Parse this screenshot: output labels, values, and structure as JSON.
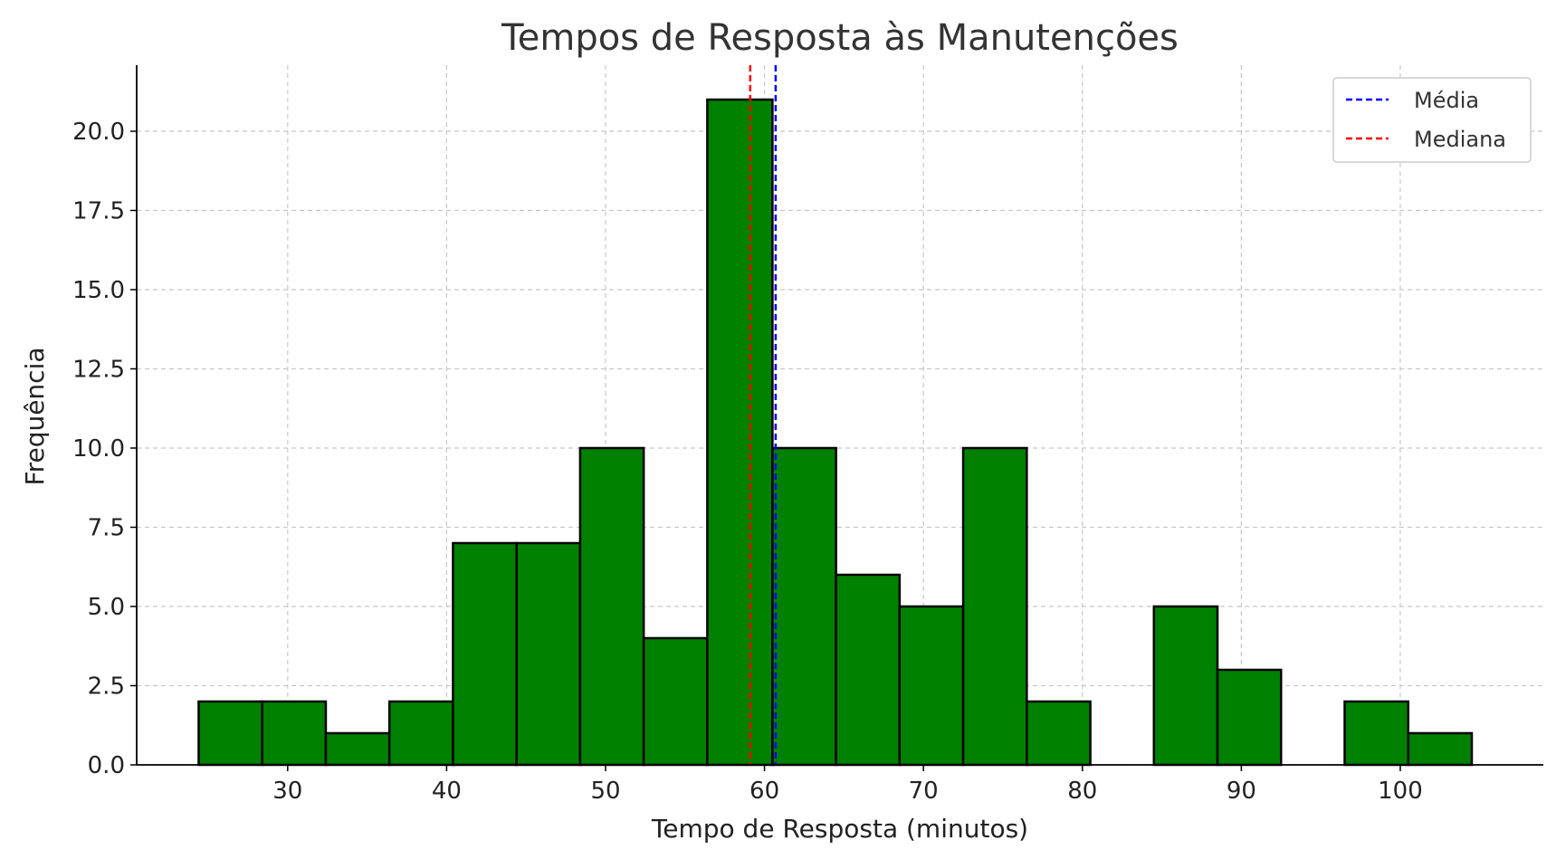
{
  "chart_data": {
    "type": "bar",
    "title": "Tempos de Resposta às Manutenções",
    "xlabel": "Tempo de Resposta (minutos)",
    "ylabel": "Frequência",
    "xlim": [
      20.5,
      109
    ],
    "ylim": [
      0,
      22
    ],
    "xticks": [
      30,
      40,
      50,
      60,
      70,
      80,
      90,
      100
    ],
    "xtick_labels": [
      "30",
      "40",
      "50",
      "60",
      70,
      "80",
      "90",
      "100"
    ],
    "yticks": [
      0,
      2.5,
      5,
      7.5,
      10,
      12.5,
      15,
      17.5,
      20
    ],
    "ytick_labels": [
      "0.0",
      "2.5",
      "5.0",
      "7.5",
      "10.0",
      "12.5",
      "15.0",
      "17.5",
      "20.0"
    ],
    "grid": true,
    "bar_color": "#008000",
    "edge_color": "#000000",
    "bins": [
      {
        "start": 24.4,
        "end": 28.4,
        "count": 2
      },
      {
        "start": 28.4,
        "end": 32.4,
        "count": 2
      },
      {
        "start": 32.4,
        "end": 36.4,
        "count": 1
      },
      {
        "start": 36.4,
        "end": 40.4,
        "count": 2
      },
      {
        "start": 40.4,
        "end": 44.4,
        "count": 7
      },
      {
        "start": 44.4,
        "end": 48.4,
        "count": 7
      },
      {
        "start": 48.4,
        "end": 52.4,
        "count": 10
      },
      {
        "start": 52.4,
        "end": 56.4,
        "count": 4
      },
      {
        "start": 56.4,
        "end": 60.5,
        "count": 21
      },
      {
        "start": 60.5,
        "end": 64.5,
        "count": 10
      },
      {
        "start": 64.5,
        "end": 68.5,
        "count": 6
      },
      {
        "start": 68.5,
        "end": 72.5,
        "count": 5
      },
      {
        "start": 72.5,
        "end": 76.5,
        "count": 10
      },
      {
        "start": 76.5,
        "end": 80.5,
        "count": 2
      },
      {
        "start": 80.5,
        "end": 84.5,
        "count": 0
      },
      {
        "start": 84.5,
        "end": 88.5,
        "count": 5
      },
      {
        "start": 88.5,
        "end": 92.5,
        "count": 3
      },
      {
        "start": 92.5,
        "end": 96.5,
        "count": 0
      },
      {
        "start": 96.5,
        "end": 100.5,
        "count": 2
      },
      {
        "start": 100.5,
        "end": 104.5,
        "count": 1
      }
    ],
    "lines": [
      {
        "name": "Média",
        "x": 60.7,
        "color": "#0000ff"
      },
      {
        "name": "Mediana",
        "x": 59.1,
        "color": "#ff0000"
      }
    ],
    "legend_position": "top-right"
  }
}
